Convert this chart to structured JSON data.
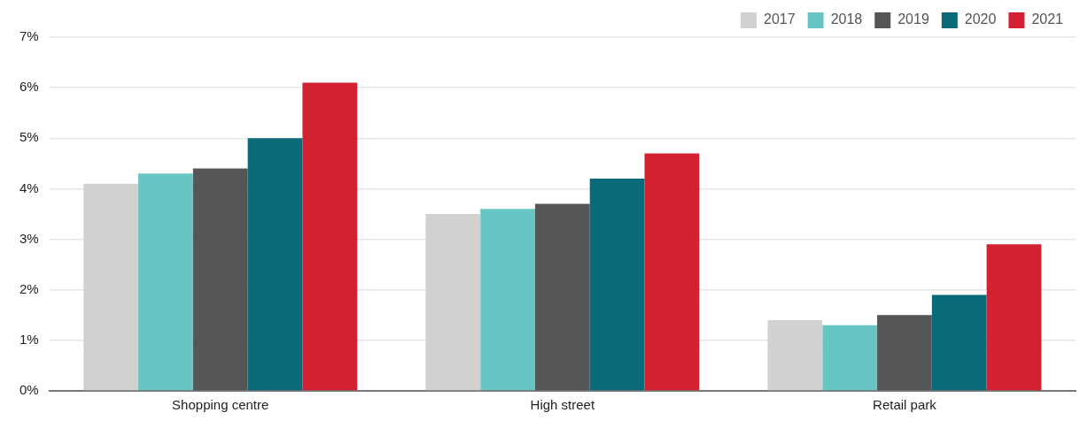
{
  "chart_data": {
    "type": "bar",
    "categories": [
      "Shopping centre",
      "High street",
      "Retail park"
    ],
    "series": [
      {
        "name": "2017",
        "color": "#d3d1cf",
        "values": [
          4.1,
          3.5,
          1.4
        ]
      },
      {
        "name": "2018",
        "color": "#67c5c3",
        "values": [
          4.3,
          3.6,
          1.3
        ]
      },
      {
        "name": "2019",
        "color": "#555658",
        "values": [
          4.4,
          3.7,
          1.5
        ]
      },
      {
        "name": "2020",
        "color": "#0a6a78",
        "values": [
          5.0,
          4.2,
          1.9
        ]
      },
      {
        "name": "2021",
        "color": "#d22232",
        "values": [
          6.1,
          4.7,
          2.9
        ]
      }
    ],
    "ylim": [
      0,
      7
    ],
    "yticks": [
      {
        "value": 0,
        "label": "0%"
      },
      {
        "value": 1,
        "label": "1%"
      },
      {
        "value": 2,
        "label": "2%"
      },
      {
        "value": 3,
        "label": "3%"
      },
      {
        "value": 4,
        "label": "4%"
      },
      {
        "value": 5,
        "label": "5%"
      },
      {
        "value": 6,
        "label": "6%"
      },
      {
        "value": 7,
        "label": "7%"
      }
    ],
    "grid": "y",
    "legend": "top right"
  }
}
